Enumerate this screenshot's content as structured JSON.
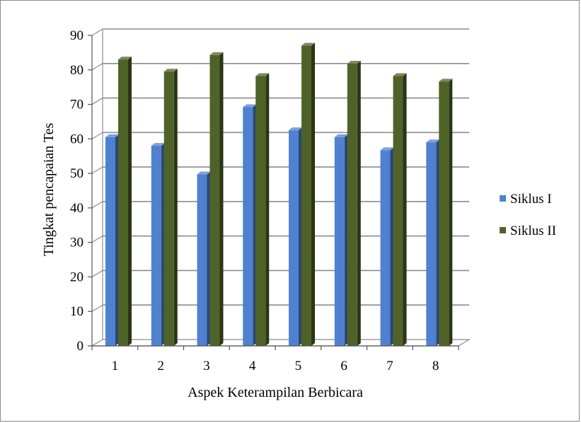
{
  "chart_data": {
    "type": "bar",
    "categories": [
      "1",
      "2",
      "3",
      "4",
      "5",
      "6",
      "7",
      "8"
    ],
    "series": [
      {
        "name": "Siklus I",
        "values": [
          60.5,
          58,
          49.7,
          69.2,
          62.5,
          60.5,
          56.7,
          59
        ],
        "color": "#4f81d0"
      },
      {
        "name": "Siklus II",
        "values": [
          83,
          79.5,
          84.3,
          78.2,
          87,
          81.8,
          78.2,
          76.6
        ],
        "color": "#4f6228"
      }
    ],
    "xlabel": "Aspek Keterampilan Berbicara",
    "ylabel": "Tingkat pencapaian Tes",
    "ylim": [
      0,
      90
    ],
    "yticks": [
      "0",
      "10",
      "20",
      "30",
      "40",
      "50",
      "60",
      "70",
      "80",
      "90"
    ],
    "grid": true,
    "legend_position": "right",
    "style": "3d-bar"
  }
}
